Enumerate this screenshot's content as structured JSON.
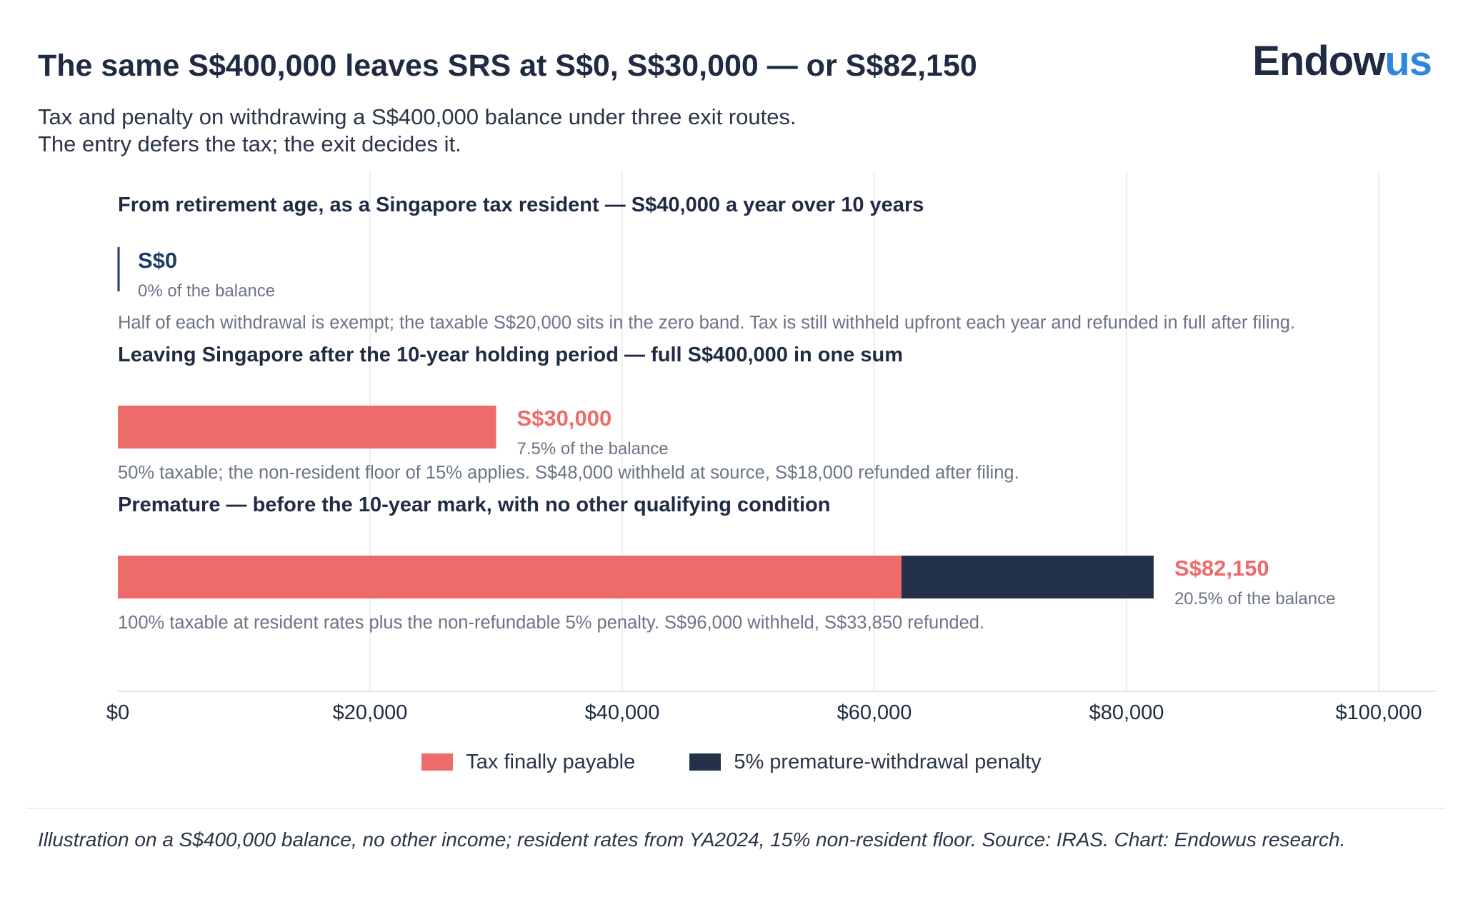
{
  "header": {
    "title": "The same S$400,000 leaves SRS at S$0, S$30,000 — or S$82,150",
    "logo_main": "Endow",
    "logo_accent": "us",
    "subtitle_line1": "Tax and penalty on withdrawing a S$400,000 balance under three exit routes.",
    "subtitle_line2": "The entry defers the tax; the exit decides it."
  },
  "colors": {
    "tax": "#ee6b6b",
    "penalty": "#24314a",
    "zero_value": "#1f3a68",
    "heading": "#1f2b43",
    "note": "#6b7486",
    "grid": "#e6e8ec"
  },
  "chart_data": {
    "type": "bar",
    "orientation": "horizontal",
    "stacked": true,
    "xlim": [
      0,
      100000
    ],
    "x_ticks": [
      0,
      20000,
      40000,
      60000,
      80000,
      100000
    ],
    "x_tick_labels": [
      "$0",
      "$20,000",
      "$40,000",
      "$60,000",
      "$80,000",
      "$100,000"
    ],
    "grid": true,
    "legend_position": "bottom-center",
    "series": [
      {
        "name": "Tax finally payable",
        "color": "#ee6b6b"
      },
      {
        "name": "5% premature-withdrawal penalty",
        "color": "#24314a"
      }
    ],
    "scenarios": [
      {
        "heading": "From retirement age, as a Singapore tax resident — S$40,000 a year over 10 years",
        "tax": 0,
        "penalty": 0,
        "total_label": "S$0",
        "share_label": "0% of the balance",
        "note": "Half of each withdrawal is exempt; the taxable S$20,000 sits in the zero band. Tax is still withheld upfront each year and refunded in full after filing."
      },
      {
        "heading": "Leaving Singapore after the 10-year holding period — full S$400,000 in one sum",
        "tax": 30000,
        "penalty": 0,
        "total_label": "S$30,000",
        "share_label": "7.5% of the balance",
        "note": "50% taxable; the non-resident floor of 15% applies. S$48,000 withheld at source, S$18,000 refunded after filing."
      },
      {
        "heading": "Premature — before the 10-year mark, with no other qualifying condition",
        "tax": 62150,
        "penalty": 20000,
        "total_label": "S$82,150",
        "share_label": "20.5% of the balance",
        "note": "100% taxable at resident rates plus the non-refundable 5% penalty. S$96,000 withheld, S$33,850 refunded."
      }
    ]
  },
  "footnote": "Illustration on a S$400,000 balance, no other income; resident rates from YA2024, 15% non-resident floor. Source: IRAS. Chart: Endowus research."
}
